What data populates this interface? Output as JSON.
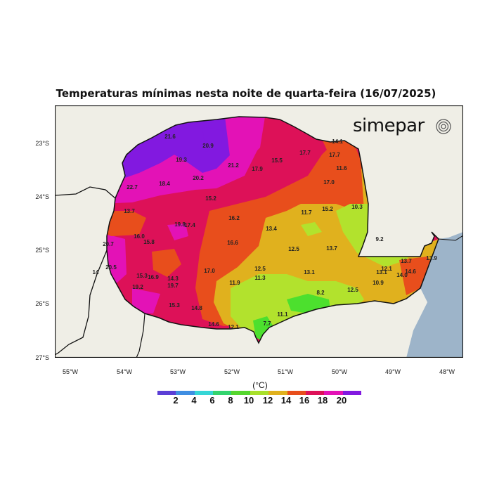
{
  "title": "Temperaturas mínimas nesta noite de quarta-feira (16/07/2025)",
  "brand": "simepar",
  "colors": {
    "land_outside": "#efeee6",
    "ocean": "#9db4c9",
    "purple": "#8219e0",
    "magenta": "#e312b6",
    "crimson": "#dd1158",
    "orange": "#e84e1c",
    "amber": "#e0b11e",
    "lime": "#b2e22d",
    "green": "#4ce02e"
  },
  "y_axis": [
    "23°S",
    "24°S",
    "25°S",
    "26°S",
    "27°S"
  ],
  "x_axis": [
    "55°W",
    "54°W",
    "53°W",
    "52°W",
    "51°W",
    "50°W",
    "49°W",
    "48°W"
  ],
  "legend": {
    "unit": "(°C)",
    "colors": [
      "#5b3fd6",
      "#3f8ee2",
      "#35d6d6",
      "#33d46e",
      "#55d62e",
      "#a8e02b",
      "#e0b11e",
      "#e84e1c",
      "#dd1158",
      "#e312b6",
      "#8219e0"
    ],
    "labels": [
      "2",
      "4",
      "6",
      "8",
      "10",
      "12",
      "14",
      "16",
      "18",
      "20"
    ]
  },
  "stations": [
    {
      "label": "21.6"
    },
    {
      "label": "20.9"
    },
    {
      "label": "19.3"
    },
    {
      "label": "21.2"
    },
    {
      "label": "20.2"
    },
    {
      "label": "22.7"
    },
    {
      "label": "18.4"
    },
    {
      "label": "15.2"
    },
    {
      "label": "17.9"
    },
    {
      "label": "15.5"
    },
    {
      "label": "17.7"
    },
    {
      "label": "14.1"
    },
    {
      "label": "17.7"
    },
    {
      "label": "11.6"
    },
    {
      "label": "17.0"
    },
    {
      "label": "13.7"
    },
    {
      "label": "16.2"
    },
    {
      "label": "11.7"
    },
    {
      "label": "15.2"
    },
    {
      "label": "10.3"
    },
    {
      "label": "19.8"
    },
    {
      "label": "17.4"
    },
    {
      "label": "16.0"
    },
    {
      "label": "15.8"
    },
    {
      "label": "13.4"
    },
    {
      "label": "20.7"
    },
    {
      "label": "16.6"
    },
    {
      "label": "12.5"
    },
    {
      "label": "13.7"
    },
    {
      "label": "9.2"
    },
    {
      "label": "20.5"
    },
    {
      "label": "17.0"
    },
    {
      "label": "12.5"
    },
    {
      "label": "13.1"
    },
    {
      "label": "13.7"
    },
    {
      "label": "13.9"
    },
    {
      "label": "15.3"
    },
    {
      "label": "16.9"
    },
    {
      "label": "14.3"
    },
    {
      "label": "11.3"
    },
    {
      "label": "12.1"
    },
    {
      "label": "13.1"
    },
    {
      "label": "14.6"
    },
    {
      "label": "19.2"
    },
    {
      "label": "19.7"
    },
    {
      "label": "11.9"
    },
    {
      "label": "10.9"
    },
    {
      "label": "14.0"
    },
    {
      "label": "8.2"
    },
    {
      "label": "12.5"
    },
    {
      "label": "15.3"
    },
    {
      "label": "14.8"
    },
    {
      "label": "11.1"
    },
    {
      "label": "14.6"
    },
    {
      "label": "12.1"
    },
    {
      "label": "7.7"
    },
    {
      "label": "14"
    }
  ]
}
